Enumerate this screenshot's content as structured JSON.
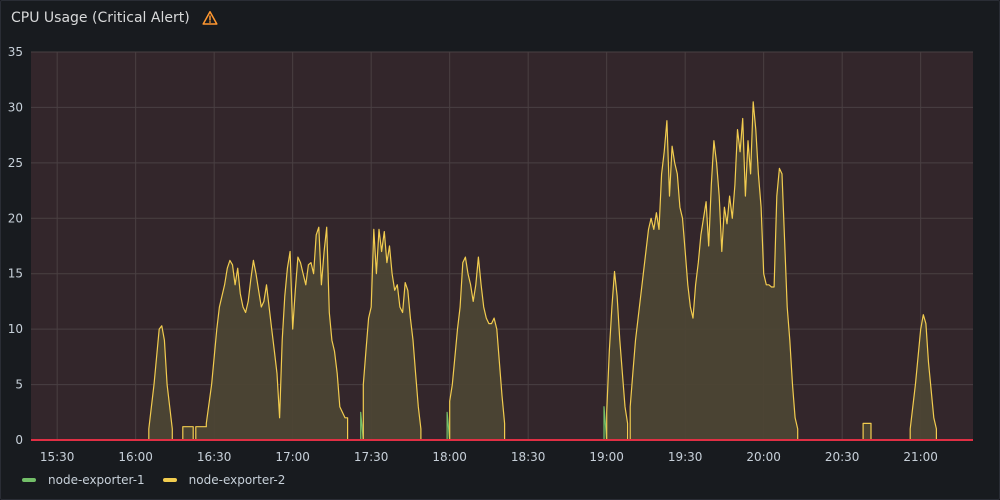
{
  "panel": {
    "title": "CPU Usage (Critical Alert)",
    "alert_icon": "warning-triangle-icon",
    "alert_color": "#ff9830"
  },
  "colors": {
    "plot_background": "#33262b",
    "grid": "#4a4043",
    "threshold": "#e02f44",
    "series_fill": "#4c4534",
    "series_line": "#f2cc4f",
    "node_exporter_1": "#73bf69",
    "node_exporter_2": "#f2cc4f"
  },
  "chart_data": {
    "type": "area",
    "title": "CPU Usage (Critical Alert)",
    "xlabel": "",
    "ylabel": "",
    "x_ticks": [
      "15:30",
      "16:00",
      "16:30",
      "17:00",
      "17:30",
      "18:00",
      "18:30",
      "19:00",
      "19:30",
      "20:00",
      "20:30",
      "21:00"
    ],
    "x_range": [
      "15:20",
      "21:20"
    ],
    "y_ticks": [
      0,
      5,
      10,
      15,
      20,
      25,
      30,
      35
    ],
    "ylim": [
      0,
      35
    ],
    "grid": true,
    "legend_position": "bottom-left",
    "series": [
      {
        "name": "node-exporter-1",
        "points": [
          [
            "17:26",
            0
          ],
          [
            "17:26",
            2.5
          ],
          [
            "17:27",
            0
          ],
          [
            "17:59",
            0
          ],
          [
            "17:59",
            2.5
          ],
          [
            "18:00",
            0
          ],
          [
            "18:59",
            0
          ],
          [
            "18:59",
            3.0
          ],
          [
            "19:00",
            0
          ]
        ]
      },
      {
        "name": "node-exporter-2",
        "points": [
          [
            "16:05",
            0
          ],
          [
            "16:05",
            1
          ],
          [
            "16:07",
            5
          ],
          [
            "16:09",
            10
          ],
          [
            "16:10",
            10.3
          ],
          [
            "16:11",
            9
          ],
          [
            "16:12",
            5
          ],
          [
            "16:14",
            1
          ],
          [
            "16:14",
            0
          ],
          [
            "16:18",
            0
          ],
          [
            "16:18",
            1.2
          ],
          [
            "16:22",
            1.2
          ],
          [
            "16:22",
            0
          ],
          [
            "16:23",
            0
          ],
          [
            "16:23",
            1.2
          ],
          [
            "16:27",
            1.2
          ],
          [
            "16:27",
            1.5
          ],
          [
            "16:29",
            5
          ],
          [
            "16:31",
            10
          ],
          [
            "16:32",
            12
          ],
          [
            "16:33",
            13
          ],
          [
            "16:34",
            14
          ],
          [
            "16:35",
            15.5
          ],
          [
            "16:36",
            16.2
          ],
          [
            "16:37",
            15.8
          ],
          [
            "16:38",
            14
          ],
          [
            "16:39",
            15.5
          ],
          [
            "16:40",
            13.2
          ],
          [
            "16:41",
            12
          ],
          [
            "16:42",
            11.5
          ],
          [
            "16:43",
            12.5
          ],
          [
            "16:44",
            14.5
          ],
          [
            "16:45",
            16.2
          ],
          [
            "16:46",
            15
          ],
          [
            "16:47",
            13.5
          ],
          [
            "16:48",
            12
          ],
          [
            "16:49",
            12.5
          ],
          [
            "16:50",
            14
          ],
          [
            "16:51",
            12
          ],
          [
            "16:52",
            10
          ],
          [
            "16:53",
            8
          ],
          [
            "16:54",
            6
          ],
          [
            "16:55",
            2
          ],
          [
            "16:56",
            9
          ],
          [
            "16:57",
            13
          ],
          [
            "16:58",
            15.5
          ],
          [
            "16:59",
            17
          ],
          [
            "17:00",
            10
          ],
          [
            "17:01",
            13.5
          ],
          [
            "17:02",
            16.5
          ],
          [
            "17:03",
            16
          ],
          [
            "17:04",
            15
          ],
          [
            "17:05",
            14
          ],
          [
            "17:06",
            15.8
          ],
          [
            "17:07",
            16
          ],
          [
            "17:08",
            15
          ],
          [
            "17:09",
            18.5
          ],
          [
            "17:10",
            19.2
          ],
          [
            "17:11",
            14
          ],
          [
            "17:12",
            17
          ],
          [
            "17:13",
            19.2
          ],
          [
            "17:14",
            11.5
          ],
          [
            "17:15",
            9
          ],
          [
            "17:16",
            8
          ],
          [
            "17:17",
            6
          ],
          [
            "17:18",
            3
          ],
          [
            "17:19",
            2.5
          ],
          [
            "17:20",
            2
          ],
          [
            "17:21",
            2
          ],
          [
            "17:21",
            0
          ],
          [
            "17:27",
            0
          ],
          [
            "17:27",
            5
          ],
          [
            "17:28",
            8
          ],
          [
            "17:29",
            11
          ],
          [
            "17:30",
            12
          ],
          [
            "17:31",
            19
          ],
          [
            "17:32",
            15
          ],
          [
            "17:33",
            19
          ],
          [
            "17:34",
            17
          ],
          [
            "17:35",
            18.8
          ],
          [
            "17:36",
            16
          ],
          [
            "17:37",
            17.5
          ],
          [
            "17:38",
            15
          ],
          [
            "17:39",
            13.5
          ],
          [
            "17:40",
            14
          ],
          [
            "17:41",
            12
          ],
          [
            "17:42",
            11.5
          ],
          [
            "17:43",
            14.2
          ],
          [
            "17:44",
            13.5
          ],
          [
            "17:45",
            11
          ],
          [
            "17:46",
            9
          ],
          [
            "17:47",
            6
          ],
          [
            "17:48",
            3
          ],
          [
            "17:49",
            1
          ],
          [
            "17:49",
            0
          ],
          [
            "18:00",
            0
          ],
          [
            "18:00",
            3.5
          ],
          [
            "18:01",
            5
          ],
          [
            "18:02",
            7.5
          ],
          [
            "18:03",
            10
          ],
          [
            "18:04",
            12
          ],
          [
            "18:05",
            16
          ],
          [
            "18:06",
            16.5
          ],
          [
            "18:07",
            15
          ],
          [
            "18:08",
            14
          ],
          [
            "18:09",
            12.5
          ],
          [
            "18:10",
            14
          ],
          [
            "18:11",
            16.5
          ],
          [
            "18:12",
            14
          ],
          [
            "18:13",
            12
          ],
          [
            "18:14",
            11
          ],
          [
            "18:15",
            10.5
          ],
          [
            "18:16",
            10.5
          ],
          [
            "18:17",
            11
          ],
          [
            "18:18",
            10
          ],
          [
            "18:19",
            7
          ],
          [
            "18:20",
            4
          ],
          [
            "18:21",
            1.5
          ],
          [
            "18:21",
            0
          ],
          [
            "19:00",
            0
          ],
          [
            "19:00",
            2.5
          ],
          [
            "19:01",
            8
          ],
          [
            "19:02",
            12
          ],
          [
            "19:03",
            15.2
          ],
          [
            "19:04",
            13
          ],
          [
            "19:05",
            9
          ],
          [
            "19:06",
            6
          ],
          [
            "19:07",
            3
          ],
          [
            "19:08",
            1.5
          ],
          [
            "19:08",
            0
          ],
          [
            "19:09",
            0
          ],
          [
            "19:09",
            3
          ],
          [
            "19:10",
            6
          ],
          [
            "19:11",
            9
          ],
          [
            "19:12",
            11
          ],
          [
            "19:13",
            13
          ],
          [
            "19:14",
            15
          ],
          [
            "19:15",
            17
          ],
          [
            "19:16",
            19
          ],
          [
            "19:17",
            20
          ],
          [
            "19:18",
            19
          ],
          [
            "19:19",
            20.5
          ],
          [
            "19:20",
            19
          ],
          [
            "19:21",
            24
          ],
          [
            "19:22",
            26
          ],
          [
            "19:23",
            28.8
          ],
          [
            "19:24",
            22
          ],
          [
            "19:25",
            26.5
          ],
          [
            "19:26",
            25
          ],
          [
            "19:27",
            24
          ],
          [
            "19:28",
            21
          ],
          [
            "19:29",
            20
          ],
          [
            "19:30",
            17
          ],
          [
            "19:31",
            14
          ],
          [
            "19:32",
            12
          ],
          [
            "19:33",
            11
          ],
          [
            "19:34",
            14
          ],
          [
            "19:35",
            16
          ],
          [
            "19:36",
            18.5
          ],
          [
            "19:37",
            20
          ],
          [
            "19:38",
            21.5
          ],
          [
            "19:39",
            17.5
          ],
          [
            "19:40",
            23
          ],
          [
            "19:41",
            27
          ],
          [
            "19:42",
            25
          ],
          [
            "19:43",
            22
          ],
          [
            "19:44",
            17
          ],
          [
            "19:45",
            21
          ],
          [
            "19:46",
            19.5
          ],
          [
            "19:47",
            22
          ],
          [
            "19:48",
            20
          ],
          [
            "19:49",
            23
          ],
          [
            "19:50",
            28
          ],
          [
            "19:51",
            26
          ],
          [
            "19:52",
            29
          ],
          [
            "19:53",
            22
          ],
          [
            "19:54",
            27
          ],
          [
            "19:55",
            24
          ],
          [
            "19:56",
            30.5
          ],
          [
            "19:57",
            28
          ],
          [
            "19:58",
            24
          ],
          [
            "19:59",
            21
          ],
          [
            "20:00",
            15
          ],
          [
            "20:01",
            14
          ],
          [
            "20:02",
            14
          ],
          [
            "20:03",
            13.8
          ],
          [
            "20:04",
            13.8
          ],
          [
            "20:05",
            22
          ],
          [
            "20:06",
            24.5
          ],
          [
            "20:07",
            24
          ],
          [
            "20:08",
            18
          ],
          [
            "20:09",
            12
          ],
          [
            "20:10",
            9
          ],
          [
            "20:11",
            5
          ],
          [
            "20:12",
            2
          ],
          [
            "20:13",
            1
          ],
          [
            "20:13",
            0
          ],
          [
            "20:38",
            0
          ],
          [
            "20:38",
            1.5
          ],
          [
            "20:41",
            1.5
          ],
          [
            "20:41",
            0
          ],
          [
            "20:56",
            0
          ],
          [
            "20:56",
            1
          ],
          [
            "20:58",
            5
          ],
          [
            "21:00",
            10
          ],
          [
            "21:01",
            11.3
          ],
          [
            "21:02",
            10.5
          ],
          [
            "21:03",
            7
          ],
          [
            "21:05",
            2
          ],
          [
            "21:06",
            1
          ],
          [
            "21:06",
            0
          ]
        ]
      }
    ]
  },
  "legend": {
    "items": [
      {
        "label": "node-exporter-1",
        "color": "#73bf69"
      },
      {
        "label": "node-exporter-2",
        "color": "#f2cc4f"
      }
    ]
  }
}
